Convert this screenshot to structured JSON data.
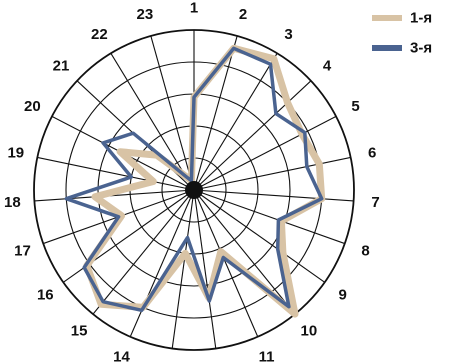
{
  "chart_data": {
    "type": "radar",
    "categories": [
      "1",
      "2",
      "3",
      "4",
      "5",
      "6",
      "7",
      "8",
      "9",
      "10",
      "11",
      "12",
      "13",
      "14",
      "15",
      "16",
      "17",
      "18",
      "19",
      "20",
      "21",
      "22",
      "23"
    ],
    "rlim": [
      0,
      5
    ],
    "grid": true,
    "legend_position": "top-right",
    "series": [
      {
        "name": "1-я",
        "color": "#d8c3a5",
        "values": [
          2.9,
          4.6,
          4.8,
          4.0,
          3.8,
          4.0,
          4.0,
          2.9,
          3.4,
          5.0,
          2.1,
          3.4,
          2.0,
          4.0,
          4.6,
          4.1,
          2.4,
          3.1,
          1.3,
          2.6,
          1.6,
          0.5,
          0.3
        ]
      },
      {
        "name": "3-я",
        "color": "#4a6390",
        "values": [
          2.9,
          4.6,
          4.6,
          3.5,
          3.9,
          3.6,
          4.0,
          2.8,
          3.2,
          4.7,
          2.3,
          3.5,
          1.5,
          4.1,
          4.5,
          4.2,
          2.5,
          4.0,
          2.0,
          3.2,
          2.6,
          0.5,
          0.3
        ]
      }
    ]
  }
}
